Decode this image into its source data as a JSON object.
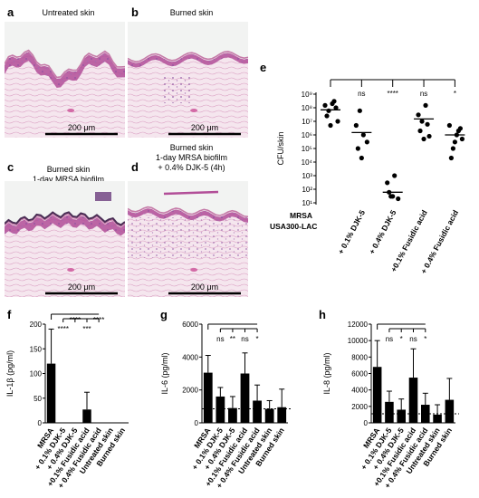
{
  "panels": {
    "a": {
      "label": "a",
      "title": [
        "Untreated skin"
      ],
      "scale": "200 μm"
    },
    "b": {
      "label": "b",
      "title": [
        "Burned skin"
      ],
      "scale": "200 μm"
    },
    "c": {
      "label": "c",
      "title": [
        "Burned skin",
        "1-day MRSA biofilm"
      ],
      "scale": "200 μm"
    },
    "d": {
      "label": "d",
      "title": [
        "Burned skin",
        "1-day MRSA biofilm",
        "+ 0.4% DJK-5 (4h)"
      ],
      "scale": "200 μm"
    }
  },
  "colors": {
    "tissue_pink": "#e7a9c9",
    "epidermis": "#b24e98",
    "background": "#f2f3f2",
    "bar": "#000000"
  },
  "chart_data": [
    {
      "id": "e",
      "label": "e",
      "type": "scatter",
      "ylabel": "CFU/skin",
      "log_scale": true,
      "ylim": [
        10,
        1000000000
      ],
      "yticks": [
        "10¹",
        "10²",
        "10³",
        "10⁴",
        "10⁵",
        "10⁶",
        "10⁷",
        "10⁸",
        "10⁹"
      ],
      "categories": [
        [
          "MRSA",
          "USA300-LAC"
        ],
        [
          "+ 0.1% DJK-5"
        ],
        [
          "+ 0.4% DJK-5"
        ],
        [
          "+0.1% Fusidic acid"
        ],
        [
          "+ 0.4% Fusidic acid"
        ]
      ],
      "significance": [
        "",
        "ns",
        "****",
        "ns",
        "*"
      ],
      "series": [
        {
          "values": [
            [
              150000000.0,
              60000000.0,
              200000000.0,
              100000000.0,
              25000000.0,
              5000000.0,
              300000000.0,
              10000000.0
            ],
            [
              5000000.0,
              60000000.0,
              1000000.0,
              300000.0,
              100000.0,
              20000.0
            ],
            [
              300.0,
              30,
              1000.0,
              20,
              60,
              30
            ],
            [
              30000000.0,
              10000000.0,
              150000000.0,
              800000.0,
              2000000.0,
              500000.0,
              6000000.0
            ],
            [
              5000000.0,
              100000.0,
              1000000.0,
              3000000.0,
              20000.0,
              300000.0,
              2000000.0,
              500000.0
            ]
          ]
        }
      ],
      "medians": [
        70000000.0,
        1500000.0,
        60,
        15000000.0,
        1000000.0
      ]
    },
    {
      "id": "f",
      "label": "f",
      "type": "bar",
      "ylabel": "IL-1β (pg/ml)",
      "ylim": [
        0,
        200
      ],
      "yticks": [
        0,
        50,
        100,
        150,
        200
      ],
      "categories": [
        "MRSA",
        "+ 0.1% DJK-5",
        "+ 0.4% DJK-5",
        "+0.1% Fusidic acid",
        "+ 0.4% Fusidic acid",
        "Untreated skin",
        "Burned skin"
      ],
      "values": [
        120,
        0,
        0,
        27,
        0,
        0,
        0
      ],
      "errors": [
        70,
        0,
        0,
        35,
        0,
        0,
        0
      ],
      "significance": [
        "",
        "****",
        "****",
        "***",
        "****",
        "",
        ""
      ]
    },
    {
      "id": "g",
      "label": "g",
      "type": "bar",
      "ylabel": "IL-6 (pg/ml)",
      "ylim": [
        0,
        6000
      ],
      "yticks": [
        0,
        2000,
        4000,
        6000
      ],
      "dotted_line": 850,
      "categories": [
        "MRSA",
        "+ 0.1% DJK-5",
        "+ 0.4% DJK-5",
        "+0.1% Fusidic acid",
        "+ 0.4% Fusidic acid",
        "Untreated skin",
        "Burned skin"
      ],
      "values": [
        3050,
        1600,
        900,
        3000,
        1350,
        850,
        950
      ],
      "errors": [
        1050,
        550,
        700,
        1250,
        950,
        500,
        1100
      ],
      "significance": [
        "",
        "ns",
        "**",
        "ns",
        "*",
        "",
        ""
      ]
    },
    {
      "id": "h",
      "label": "h",
      "type": "bar",
      "ylabel": "IL-8 (pg/ml)",
      "ylim": [
        0,
        12000
      ],
      "yticks": [
        0,
        2000,
        4000,
        6000,
        8000,
        10000,
        12000
      ],
      "dotted_line": 1100,
      "categories": [
        "MRSA",
        "+ 0.1% DJK-5",
        "+ 0.4% DJK-5",
        "+0.1% Fusidic acid",
        "+ 0.4% Fusidic acid",
        "Untreated skin",
        "Burned skin"
      ],
      "values": [
        6800,
        2550,
        1600,
        5500,
        2200,
        1000,
        2800
      ],
      "errors": [
        3200,
        1300,
        1300,
        3500,
        1400,
        1200,
        2600
      ],
      "significance": [
        "",
        "ns",
        "*",
        "ns",
        "*",
        "",
        ""
      ]
    }
  ]
}
